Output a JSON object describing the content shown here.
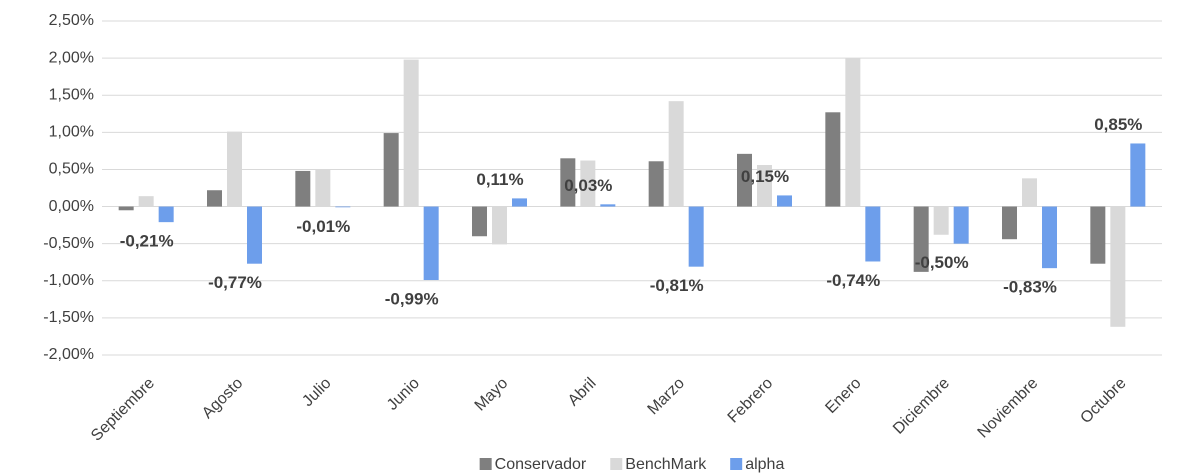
{
  "chart_data": {
    "type": "bar",
    "categories": [
      "Septiembre",
      "Agosto",
      "Julio",
      "Junio",
      "Mayo",
      "Abril",
      "Marzo",
      "Febrero",
      "Enero",
      "Diciembre",
      "Noviembre",
      "Octubre"
    ],
    "series": [
      {
        "name": "Conservador",
        "color": "#7f7f7f",
        "values": [
          -0.05,
          0.22,
          0.48,
          0.99,
          -0.4,
          0.65,
          0.61,
          0.71,
          1.27,
          -0.88,
          -0.44,
          -0.77
        ]
      },
      {
        "name": "BenchMark",
        "color": "#d9d9d9",
        "values": [
          0.14,
          1.01,
          0.5,
          1.98,
          -0.51,
          0.62,
          1.42,
          0.56,
          2.0,
          -0.38,
          0.38,
          -1.62
        ]
      },
      {
        "name": "alpha",
        "color": "#6d9eeb",
        "values": [
          -0.21,
          -0.77,
          -0.01,
          -0.99,
          0.11,
          0.03,
          -0.81,
          0.15,
          -0.74,
          -0.5,
          -0.83,
          0.85
        ],
        "value_labels": [
          "-0,21%",
          "-0,77%",
          "-0,01%",
          "-0,99%",
          "0,11%",
          "0,03%",
          "-0,81%",
          "0,15%",
          "-0,74%",
          "-0,50%",
          "-0,83%",
          "0,85%"
        ]
      }
    ],
    "ylim": [
      -2,
      2.5
    ],
    "yticks": [
      {
        "value": -2,
        "label": "-2,00%"
      },
      {
        "value": -1.5,
        "label": "-1,50%"
      },
      {
        "value": -1,
        "label": "-1,00%"
      },
      {
        "value": -0.5,
        "label": "-0,50%"
      },
      {
        "value": 0,
        "label": "0,00%"
      },
      {
        "value": 0.5,
        "label": "0,50%"
      },
      {
        "value": 1,
        "label": "1,00%"
      },
      {
        "value": 1.5,
        "label": "1,50%"
      },
      {
        "value": 2,
        "label": "2,00%"
      },
      {
        "value": 2.5,
        "label": "2,50%"
      }
    ],
    "grid": true,
    "legend": "bottom"
  }
}
